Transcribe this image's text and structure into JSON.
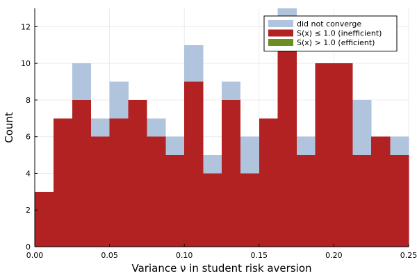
{
  "chart_data": {
    "type": "bar",
    "xlabel": "Variance ν in student risk aversion",
    "ylabel": "Count",
    "xlim": [
      0,
      0.25
    ],
    "ylim": [
      0,
      13
    ],
    "x_ticks": [
      0,
      0.05,
      0.1,
      0.15,
      0.2,
      0.25
    ],
    "x_tick_labels": [
      "0.00",
      "0.05",
      "0.10",
      "0.15",
      "0.20",
      "0.25"
    ],
    "y_ticks": [
      0,
      2,
      4,
      6,
      8,
      10,
      12
    ],
    "y_tick_labels": [
      "0",
      "2",
      "4",
      "6",
      "8",
      "10",
      "12"
    ],
    "grid": true,
    "legend_position": "top-right",
    "bin_width": 0.0125,
    "bin_starts": [
      0.0,
      0.0125,
      0.025,
      0.0375,
      0.05,
      0.0625,
      0.075,
      0.0875,
      0.1,
      0.1125,
      0.125,
      0.1375,
      0.15,
      0.1625,
      0.175,
      0.1875,
      0.2,
      0.2125,
      0.225,
      0.2375
    ],
    "series": [
      {
        "name": "did not converge",
        "color": "#b0c4de",
        "values": [
          3,
          7,
          10,
          7,
          9,
          8,
          7,
          6,
          11,
          5,
          9,
          6,
          7,
          13,
          6,
          10,
          10,
          8,
          6,
          6
        ]
      },
      {
        "name": "S(x) ≤ 1.0 (inefficient)",
        "color": "#b22222",
        "values": [
          3,
          7,
          8,
          6,
          7,
          8,
          6,
          5,
          9,
          4,
          8,
          4,
          7,
          11,
          5,
          10,
          10,
          5,
          6,
          5
        ]
      },
      {
        "name": "S(x) > 1.0 (efficient)",
        "color": "#6b8e23",
        "values": [
          0,
          0,
          0,
          0,
          0,
          0,
          0,
          0,
          0,
          0,
          0,
          0,
          0,
          0,
          0,
          0,
          0,
          0,
          0,
          0
        ]
      }
    ]
  }
}
